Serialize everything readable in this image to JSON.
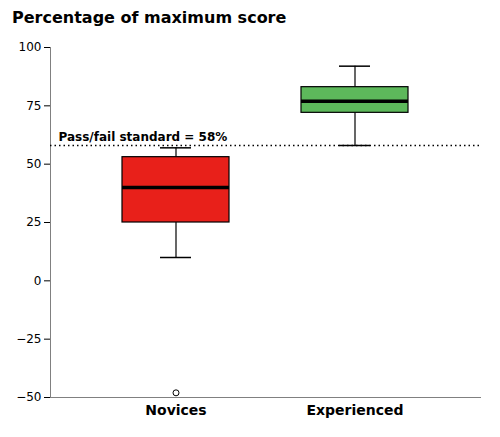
{
  "chart_data": {
    "type": "box",
    "title": "Percentage of maximum score",
    "categories": [
      "Novices",
      "Experienced"
    ],
    "q1": [
      25,
      72
    ],
    "median": [
      40,
      77
    ],
    "q3": [
      53,
      83
    ],
    "whisker_low": [
      10,
      58
    ],
    "whisker_high": [
      57,
      92
    ],
    "outliers": [
      [
        -48
      ],
      []
    ],
    "colors": [
      "#e8201a",
      "#5db85b"
    ],
    "annotations": [
      {
        "y": 58,
        "text": "Pass/fail standard = 58%"
      }
    ],
    "ylim": [
      -50,
      100
    ],
    "yticks": [
      -50,
      -25,
      0,
      25,
      50,
      75,
      100
    ],
    "grid": false
  }
}
